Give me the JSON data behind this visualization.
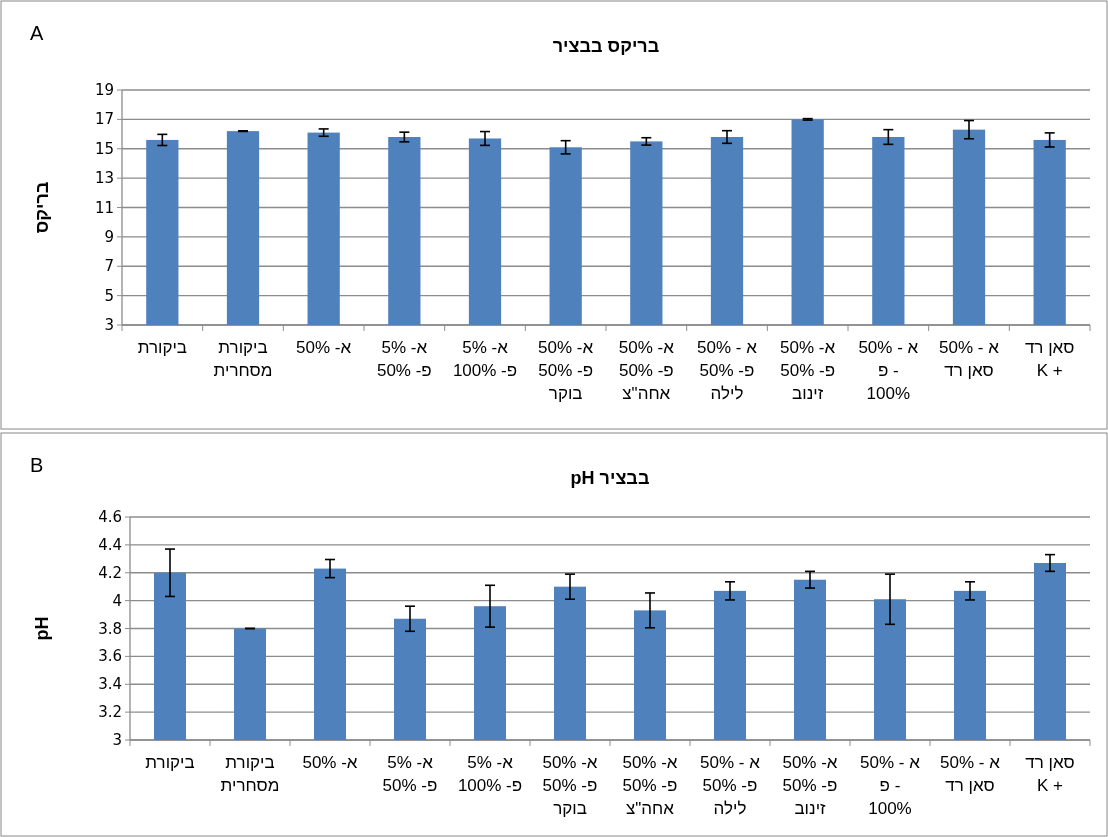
{
  "chart_data": [
    {
      "type": "bar",
      "title": "בריקס בבציר",
      "ylabel": "בריקס",
      "annotations": [
        "A"
      ],
      "categories": [
        "ביקורת",
        "ביקורת\nמסחרית",
        "א- 50%",
        "א- 5%\nפ- 50%",
        "א- 5%\nפ- 100%",
        "א- 50%\nפ- 50%\nבוקר",
        "א- 50%\nפ- 50%\nאחה\"צ",
        "א - 50%\nפ- 50%\nלילה",
        "א- 50%\nפ- 50%\nזינוב",
        "א - 50%\nפ -\n100%",
        "א - 50%\nסאן רד",
        "סאן רד\nK +"
      ],
      "series": [
        {
          "color": "#4f81bd",
          "values": [
            15.6,
            16.2,
            16.1,
            15.8,
            15.7,
            15.1,
            15.5,
            15.8,
            17.0,
            15.8,
            16.3,
            15.6
          ],
          "errors": [
            0.38,
            0.02,
            0.25,
            0.33,
            0.47,
            0.45,
            0.25,
            0.43,
            0.05,
            0.5,
            0.62,
            0.48
          ]
        }
      ],
      "ylim": [
        3,
        19
      ],
      "yticks": [
        3,
        5,
        7,
        9,
        11,
        13,
        15,
        17,
        19
      ],
      "grid": "y"
    },
    {
      "type": "bar",
      "title": "pH בבציר",
      "ylabel": "pH",
      "annotations": [
        "B"
      ],
      "categories": [
        "ביקורת",
        "ביקורת\nמסחרית",
        "א- 50%",
        "א- 5%\nפ- 50%",
        "א- 5%\nפ- 100%",
        "א- 50%\nפ- 50%\nבוקר",
        "א- 50%\nפ- 50%\nאחה\"צ",
        "א - 50%\nפ- 50%\nלילה",
        "א- 50%\nפ- 50%\nזינוב",
        "א - 50%\nפ -\n100%",
        "א - 50%\nסאן רד",
        "סאן רד\nK +"
      ],
      "series": [
        {
          "color": "#4f81bd",
          "values": [
            4.2,
            3.8,
            4.23,
            3.87,
            3.96,
            4.1,
            3.93,
            4.07,
            4.15,
            4.01,
            4.07,
            4.27
          ],
          "errors": [
            0.17,
            0,
            0.065,
            0.09,
            0.15,
            0.09,
            0.125,
            0.065,
            0.06,
            0.18,
            0.065,
            0.06
          ]
        }
      ],
      "ylim": [
        3,
        4.6
      ],
      "yticks": [
        3,
        {
          "value": 3.2,
          "label": "3.2"
        },
        {
          "value": 3.4,
          "label": "3.4"
        },
        {
          "value": 3.6,
          "label": "3.6"
        },
        {
          "value": 3.8,
          "label": "3.8"
        },
        4,
        {
          "value": 4.2,
          "label": "4.2"
        },
        {
          "value": 4.4,
          "label": "4.4"
        },
        {
          "value": 4.6,
          "label": "4.6"
        }
      ],
      "grid": "y"
    }
  ]
}
